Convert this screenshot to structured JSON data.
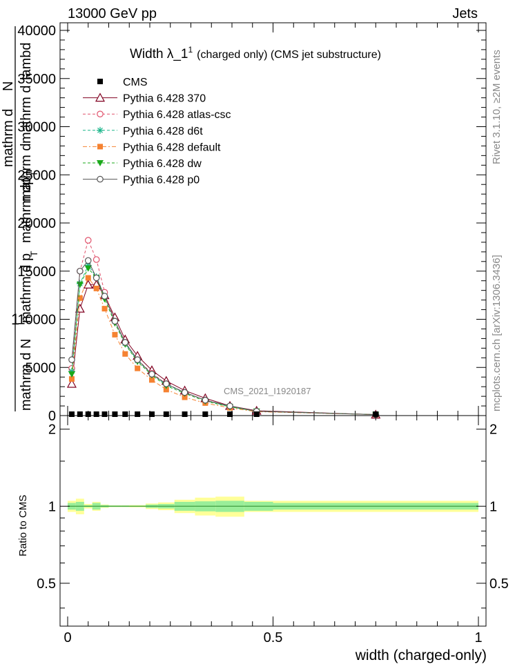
{
  "header": {
    "left": "13000 GeV pp",
    "right": "Jets"
  },
  "side": {
    "rivet": "Rivet 3.1.10, ≥2M events",
    "mcplots": "mcplots.cern.ch [arXiv:1306.3436]"
  },
  "chart_data": [
    {
      "type": "line",
      "title": "Width λ_1",
      "title_sup": "1",
      "title_suffix": "(charged only) (CMS jet substructure)",
      "ylabel": "1 / mathrm d N / mathrm d p_T mathrm d^2N / mathrm d p_T mathrm d lambda",
      "ylabel_parts": [
        "mathrm d N",
        "mathrm d p",
        "T",
        "mathrm d",
        "mathrm d",
        "mathrm d",
        "mathrm d",
        "N",
        "p",
        "T",
        "lambd"
      ],
      "ylabel_one": "1",
      "watermark": "CMS_2021_I1920187",
      "xlim": [
        0,
        1
      ],
      "ylim": [
        0,
        40000
      ],
      "yticks": [
        0,
        5000,
        10000,
        15000,
        20000,
        25000,
        30000,
        35000,
        40000
      ],
      "ytick_labels": [
        "0",
        "5000",
        "10000",
        "15000",
        "20000",
        "25000",
        "30000",
        "35000",
        "40000"
      ],
      "legend_position": "top-left",
      "series": [
        {
          "name": "CMS",
          "color": "#000000",
          "marker": "square",
          "x": [
            0.01,
            0.03,
            0.05,
            0.07,
            0.09,
            0.115,
            0.14,
            0.17,
            0.205,
            0.24,
            0.285,
            0.335,
            0.395,
            0.46,
            0.75
          ],
          "y": [
            0,
            0,
            0,
            0,
            0,
            0,
            0,
            0,
            0,
            0,
            0,
            0,
            0,
            0,
            0
          ]
        },
        {
          "name": "Pythia 6.428 370",
          "color": "#800020",
          "marker": "triangle-open",
          "dash": "",
          "x": [
            0.01,
            0.03,
            0.05,
            0.07,
            0.09,
            0.115,
            0.14,
            0.17,
            0.205,
            0.24,
            0.285,
            0.335,
            0.395,
            0.46,
            0.75
          ],
          "y": [
            3300,
            11100,
            13600,
            13600,
            12500,
            10200,
            7900,
            6200,
            4700,
            3600,
            2600,
            1800,
            1000,
            500,
            100
          ]
        },
        {
          "name": "Pythia 6.428 atlas-csc",
          "color": "#e0506a",
          "marker": "circle-open",
          "dash": "4,3",
          "x": [
            0.01,
            0.03,
            0.05,
            0.07,
            0.09,
            0.115,
            0.14,
            0.17,
            0.205,
            0.24,
            0.285,
            0.335,
            0.395,
            0.46,
            0.75
          ],
          "y": [
            4900,
            15000,
            18200,
            16200,
            12800,
            9800,
            7600,
            5800,
            4400,
            3300,
            2400,
            1600,
            900,
            450,
            100
          ]
        },
        {
          "name": "Pythia 6.428 d6t",
          "color": "#1ab58a",
          "marker": "star",
          "dash": "4,3",
          "x": [
            0.01,
            0.03,
            0.05,
            0.07,
            0.09,
            0.115,
            0.14,
            0.17,
            0.205,
            0.24,
            0.285,
            0.335,
            0.395,
            0.46,
            0.75
          ],
          "y": [
            4600,
            13700,
            15600,
            14400,
            12400,
            9800,
            7500,
            5700,
            4300,
            3200,
            2400,
            1600,
            900,
            450,
            100
          ]
        },
        {
          "name": "Pythia 6.428 default",
          "color": "#f58231",
          "marker": "square",
          "dash": "6,3,2,3",
          "x": [
            0.01,
            0.03,
            0.05,
            0.07,
            0.09,
            0.115,
            0.14,
            0.17,
            0.205,
            0.24,
            0.285,
            0.335,
            0.395,
            0.46,
            0.75
          ],
          "y": [
            3800,
            12200,
            14300,
            13200,
            11100,
            8400,
            6400,
            4900,
            3700,
            2700,
            1900,
            1300,
            800,
            400,
            100
          ]
        },
        {
          "name": "Pythia 6.428 dw",
          "color": "#1aa81a",
          "marker": "triangle-down",
          "dash": "4,3",
          "x": [
            0.01,
            0.03,
            0.05,
            0.07,
            0.09,
            0.115,
            0.14,
            0.17,
            0.205,
            0.24,
            0.285,
            0.335,
            0.395,
            0.46,
            0.75
          ],
          "y": [
            4300,
            13600,
            15300,
            14300,
            12100,
            9600,
            7400,
            5600,
            4200,
            3100,
            2300,
            1500,
            900,
            450,
            100
          ]
        },
        {
          "name": "Pythia 6.428 p0",
          "color": "#555555",
          "marker": "circle-open",
          "dash": "",
          "x": [
            0.01,
            0.03,
            0.05,
            0.07,
            0.09,
            0.115,
            0.14,
            0.17,
            0.205,
            0.24,
            0.285,
            0.335,
            0.395,
            0.46,
            0.75
          ],
          "y": [
            5800,
            15000,
            16100,
            14300,
            12400,
            9800,
            7600,
            5800,
            4300,
            3300,
            2400,
            1600,
            1000,
            450,
            100
          ]
        }
      ]
    },
    {
      "type": "area",
      "ylabel": "Ratio to CMS",
      "xlabel": "width (charged-only)",
      "xlim": [
        0,
        1
      ],
      "ylim": [
        0.34,
        2.26
      ],
      "xticks": [
        0,
        0.5,
        1
      ],
      "xtick_labels": [
        "0",
        "0.5",
        "1"
      ],
      "ytick_labels": [
        "0.5",
        "1",
        "2"
      ],
      "bands": {
        "bin_edges": [
          0,
          0.02,
          0.04,
          0.06,
          0.08,
          0.1,
          0.13,
          0.15,
          0.19,
          0.22,
          0.26,
          0.31,
          0.36,
          0.43,
          0.5,
          1.0
        ],
        "stat_halfwidth": [
          0.03,
          0.04,
          0.008,
          0.03,
          0.01,
          0.006,
          0.006,
          0.005,
          0.015,
          0.02,
          0.04,
          0.045,
          0.05,
          0.04,
          0.03
        ],
        "total_halfwidth": [
          0.05,
          0.07,
          0.02,
          0.04,
          0.015,
          0.008,
          0.008,
          0.01,
          0.025,
          0.035,
          0.06,
          0.08,
          0.09,
          0.05,
          0.05
        ]
      }
    }
  ]
}
